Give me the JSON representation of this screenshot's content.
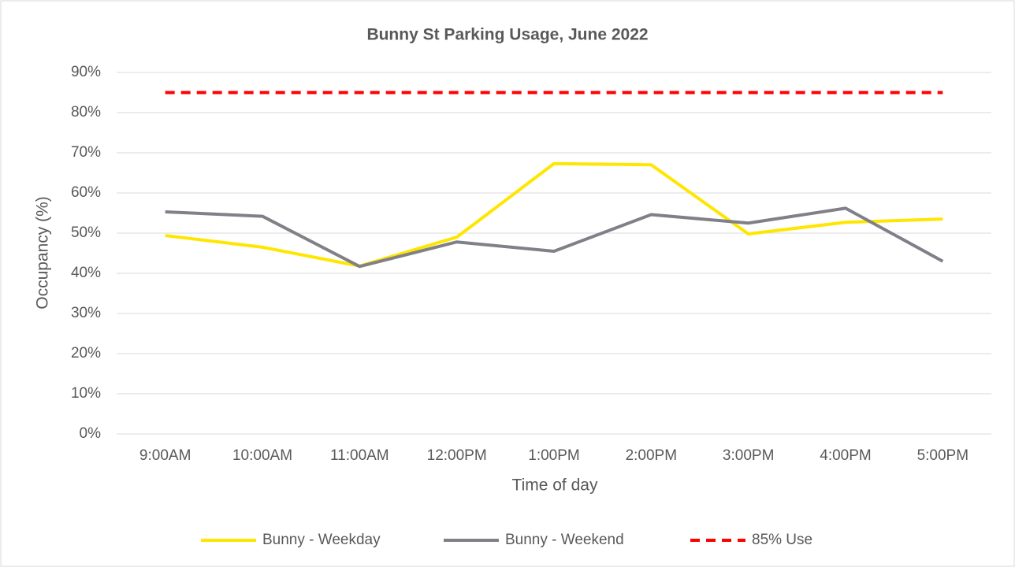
{
  "chart_data": {
    "type": "line",
    "title": "Bunny St Parking Usage, June 2022",
    "x_label": "Time of day",
    "y_label": "Occupancy (%)",
    "categories": [
      "9:00AM",
      "10:00AM",
      "11:00AM",
      "12:00PM",
      "1:00PM",
      "2:00PM",
      "3:00PM",
      "4:00PM",
      "5:00PM"
    ],
    "series": [
      {
        "name": "Bunny - Weekday",
        "color": "#FFE600",
        "values": [
          49.4,
          46.5,
          41.8,
          49,
          67.3,
          67,
          49.8,
          52.7,
          53.5
        ]
      },
      {
        "name": "Bunny - Weekend",
        "color": "#808089",
        "values": [
          55.3,
          54.2,
          41.7,
          47.8,
          45.5,
          54.6,
          52.5,
          56.2,
          43
        ]
      },
      {
        "name": "85% Use",
        "color": "#FF0000",
        "dashed": true,
        "values": [
          85,
          85,
          85,
          85,
          85,
          85,
          85,
          85,
          85
        ]
      }
    ],
    "ylim": [
      0,
      90
    ],
    "yticks": [
      {
        "value": 0,
        "label": "0%"
      },
      {
        "value": 10,
        "label": "10%"
      },
      {
        "value": 20,
        "label": "20%"
      },
      {
        "value": 30,
        "label": "30%"
      },
      {
        "value": 40,
        "label": "40%"
      },
      {
        "value": 50,
        "label": "50%"
      },
      {
        "value": 60,
        "label": "60%"
      },
      {
        "value": 70,
        "label": "70%"
      },
      {
        "value": 80,
        "label": "80%"
      },
      {
        "value": 90,
        "label": "90%"
      }
    ],
    "grid": true,
    "legend": "bottom"
  }
}
